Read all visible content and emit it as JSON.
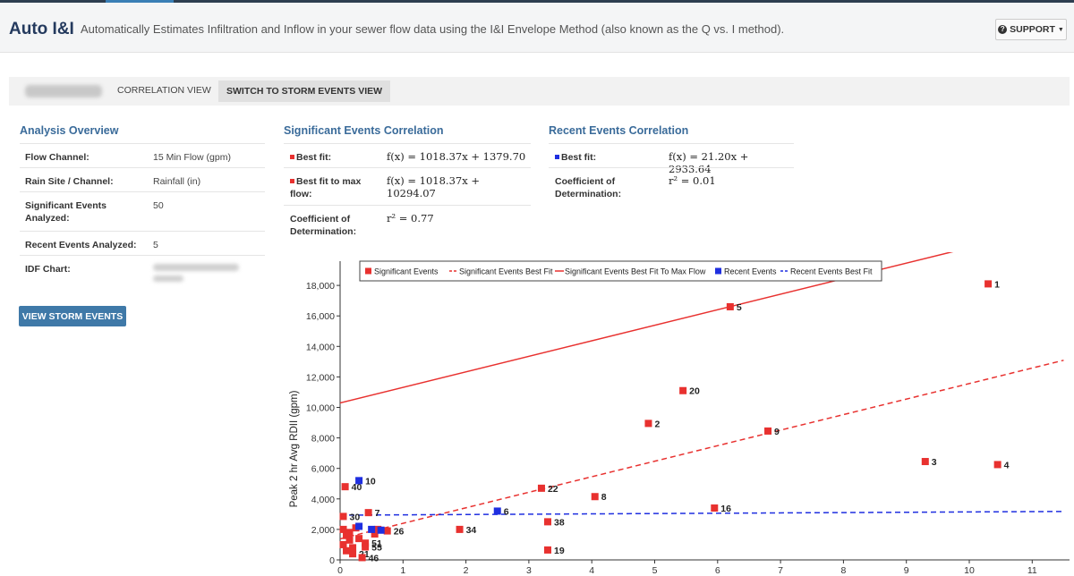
{
  "header": {
    "brand": "Auto I&I",
    "tagline": "Automatically Estimates Infiltration and Inflow in your sewer flow data using the I&I Envelope Method (also known as the Q vs. I method).",
    "support_label": "SUPPORT",
    "support_icon": "question-circle-icon"
  },
  "toolbar": {
    "correlation_view_label": "CORRELATION VIEW",
    "switch_label": "SWITCH TO STORM EVENTS VIEW"
  },
  "overview": {
    "title": "Analysis Overview",
    "flow_channel_label": "Flow Channel:",
    "flow_channel_value": "15 Min Flow (gpm)",
    "rain_site_label": "Rain Site / Channel:",
    "rain_site_value": "Rainfall (in)",
    "sig_events_label": "Significant Events Analyzed:",
    "sig_events_value": "50",
    "recent_events_label": "Recent Events Analyzed:",
    "recent_events_value": "5",
    "idf_label": "IDF Chart:",
    "view_storm_label": "VIEW STORM EVENTS"
  },
  "significant": {
    "title": "Significant Events Correlation",
    "best_fit_label": "Best fit:",
    "best_fit_formula": "f(x) = 1018.37x + 1379.70",
    "max_fit_label": "Best fit to max flow:",
    "max_fit_formula": "f(x) = 1018.37x + 10294.07",
    "cod_label": "Coefficient of Determination:",
    "cod_value": "r² = 0.77",
    "color": "#e8312f"
  },
  "recent": {
    "title": "Recent Events Correlation",
    "best_fit_label": "Best fit:",
    "best_fit_formula": "f(x) = 21.20x + 2933.64",
    "cod_label": "Coefficient of Determination:",
    "cod_value": "r² = 0.01",
    "color": "#1f2fe0"
  },
  "chart_data": {
    "type": "scatter",
    "ylabel": "Peak 2 hr Avg RDII (gpm)",
    "xlabel": "",
    "xlim": [
      0,
      11.5
    ],
    "ylim": [
      0,
      19000
    ],
    "x_ticks": [
      "0",
      "1",
      "2",
      "3",
      "4",
      "5",
      "6",
      "7",
      "8",
      "9",
      "10",
      "11"
    ],
    "y_ticks": [
      "0",
      "2,000",
      "4,000",
      "6,000",
      "8,000",
      "10,000",
      "12,000",
      "14,000",
      "16,000",
      "18,000"
    ],
    "legend": [
      "Significant Events",
      "Significant Events Best Fit",
      "Significant Events Best Fit To Max Flow",
      "Recent Events",
      "Recent Events Best Fit"
    ],
    "legend_position": "top",
    "series": [
      {
        "name": "Significant Events",
        "color": "#e8312f",
        "points": [
          {
            "x": 10.3,
            "y": 18100,
            "label": "1"
          },
          {
            "x": 6.2,
            "y": 16600,
            "label": "5"
          },
          {
            "x": 5.45,
            "y": 11100,
            "label": "20"
          },
          {
            "x": 4.9,
            "y": 8950,
            "label": "2"
          },
          {
            "x": 6.8,
            "y": 8450,
            "label": "9"
          },
          {
            "x": 9.3,
            "y": 6450,
            "label": "3"
          },
          {
            "x": 10.45,
            "y": 6250,
            "label": "4"
          },
          {
            "x": 3.2,
            "y": 4700,
            "label": "22"
          },
          {
            "x": 4.05,
            "y": 4150,
            "label": "8"
          },
          {
            "x": 5.95,
            "y": 3400,
            "label": "16"
          },
          {
            "x": 3.3,
            "y": 2500,
            "label": "38"
          },
          {
            "x": 1.9,
            "y": 2000,
            "label": "34"
          },
          {
            "x": 3.3,
            "y": 650,
            "label": "19"
          },
          {
            "x": 0.08,
            "y": 4800,
            "label": "40"
          },
          {
            "x": 0.45,
            "y": 3100,
            "label": "7"
          },
          {
            "x": 0.05,
            "y": 2850,
            "label": "30"
          },
          {
            "x": 0.75,
            "y": 1900,
            "label": "26"
          },
          {
            "x": 0.4,
            "y": 1100,
            "label": "51"
          },
          {
            "x": 0.4,
            "y": 850,
            "label": "55"
          },
          {
            "x": 0.2,
            "y": 400,
            "label": "21"
          },
          {
            "x": 0.35,
            "y": 150,
            "label": "46"
          },
          {
            "x": 0.05,
            "y": 2000,
            "label": ""
          },
          {
            "x": 0.1,
            "y": 1600,
            "label": ""
          },
          {
            "x": 0.15,
            "y": 1300,
            "label": ""
          },
          {
            "x": 0.05,
            "y": 1000,
            "label": ""
          },
          {
            "x": 0.2,
            "y": 800,
            "label": ""
          },
          {
            "x": 0.1,
            "y": 600,
            "label": ""
          },
          {
            "x": 0.3,
            "y": 1400,
            "label": ""
          },
          {
            "x": 0.25,
            "y": 2100,
            "label": ""
          },
          {
            "x": 0.55,
            "y": 1700,
            "label": ""
          },
          {
            "x": 0.6,
            "y": 2000,
            "label": ""
          },
          {
            "x": 0.15,
            "y": 1800,
            "label": ""
          }
        ]
      },
      {
        "name": "Recent Events",
        "color": "#1f2fe0",
        "points": [
          {
            "x": 0.3,
            "y": 5200,
            "label": "10"
          },
          {
            "x": 2.5,
            "y": 3200,
            "label": "6"
          },
          {
            "x": 0.3,
            "y": 2200,
            "label": ""
          },
          {
            "x": 0.5,
            "y": 2000,
            "label": ""
          },
          {
            "x": 0.65,
            "y": 1950,
            "label": ""
          }
        ]
      }
    ],
    "lines": [
      {
        "name": "Significant Events Best Fit",
        "slope": 1018.37,
        "intercept": 1379.7,
        "color": "#e8312f",
        "dashed": true
      },
      {
        "name": "Significant Events Best Fit To Max Flow",
        "slope": 1018.37,
        "intercept": 10294.07,
        "color": "#e8312f",
        "dashed": false
      },
      {
        "name": "Recent Events Best Fit",
        "slope": 21.2,
        "intercept": 2933.64,
        "color": "#1f2fe0",
        "dashed": true
      }
    ]
  }
}
